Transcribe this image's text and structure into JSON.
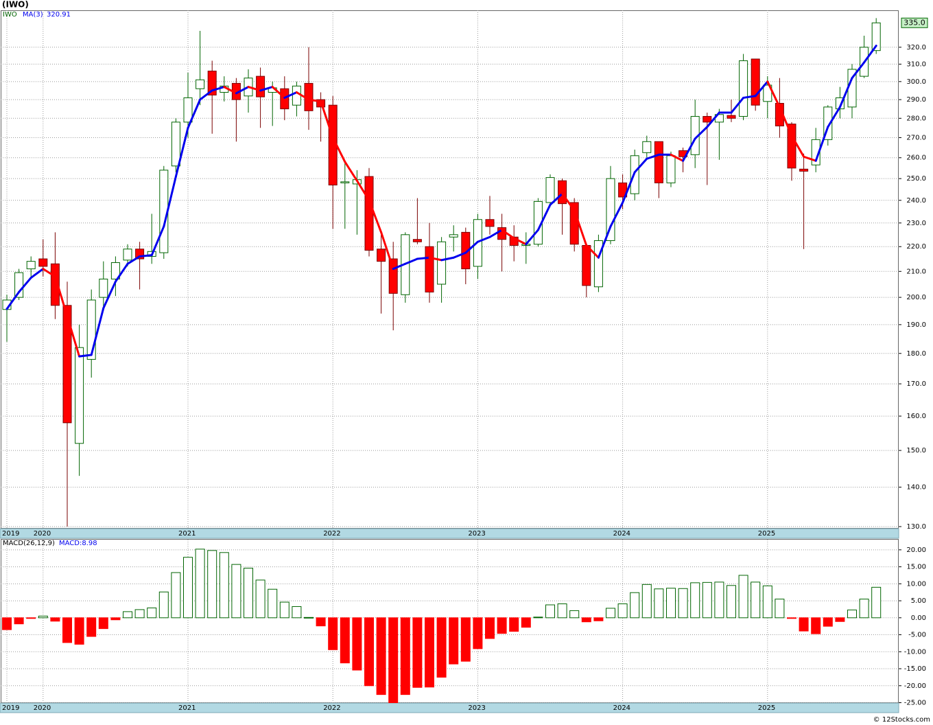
{
  "chart_data": [
    {
      "type": "candlestick",
      "title": "(IWO)",
      "log_scale": true,
      "grid": true,
      "categories": [
        "2019",
        null,
        null,
        "2020",
        null,
        null,
        null,
        null,
        null,
        null,
        null,
        null,
        null,
        null,
        null,
        "2021",
        null,
        null,
        null,
        null,
        null,
        null,
        null,
        null,
        null,
        null,
        null,
        "2022",
        null,
        null,
        null,
        null,
        null,
        null,
        null,
        null,
        null,
        null,
        null,
        "2023",
        null,
        null,
        null,
        null,
        null,
        null,
        null,
        null,
        null,
        null,
        null,
        "2024",
        null,
        null,
        null,
        null,
        null,
        null,
        null,
        null,
        null,
        null,
        null,
        "2025",
        null,
        null,
        null,
        null,
        null,
        null,
        null,
        null,
        null
      ],
      "ylim": [
        129.5,
        343
      ],
      "yticks": [
        {
          "value": 130,
          "label": "130.0"
        },
        {
          "value": 140,
          "label": "140.0"
        },
        {
          "value": 150,
          "label": "150.0"
        },
        {
          "value": 160,
          "label": "160.0"
        },
        {
          "value": 170,
          "label": "170.0"
        },
        {
          "value": 180,
          "label": "180.0"
        },
        {
          "value": 190,
          "label": "190.0"
        },
        {
          "value": 200,
          "label": "200.0"
        },
        {
          "value": 210,
          "label": "210.0"
        },
        {
          "value": 220,
          "label": "220.0"
        },
        {
          "value": 230,
          "label": "230.0"
        },
        {
          "value": 240,
          "label": "240.0"
        },
        {
          "value": 250,
          "label": "250.0"
        },
        {
          "value": 260,
          "label": "260.0"
        },
        {
          "value": 270,
          "label": "270.0"
        },
        {
          "value": 280,
          "label": "280.0"
        },
        {
          "value": 290,
          "label": "290.0"
        },
        {
          "value": 300,
          "label": "300.0"
        },
        {
          "value": 310,
          "label": "310.0"
        },
        {
          "value": 320,
          "label": "320.0"
        }
      ],
      "last_label": "335.0",
      "series": [
        {
          "name": "IWO",
          "color": "#006400",
          "down_color": "#ff0000",
          "open": [
            195.5,
            200,
            211,
            215,
            213,
            197,
            152,
            178,
            200,
            207,
            214.5,
            219,
            216,
            217.5,
            256,
            278,
            296,
            306,
            294,
            299,
            292,
            303,
            294,
            296,
            287,
            299,
            290,
            287,
            248,
            247.5,
            251,
            219,
            215,
            201,
            223,
            220,
            205,
            224,
            226,
            212,
            231.5,
            228,
            224,
            220.5,
            221,
            239,
            249,
            239,
            220.5,
            204,
            222.5,
            248,
            243,
            262.5,
            268,
            248,
            263.5,
            261.5,
            281,
            278,
            281.5,
            281,
            313,
            289,
            288,
            277,
            254.5,
            256.5,
            269,
            285,
            286,
            303,
            318
          ],
          "high": [
            201,
            211,
            216,
            223,
            226,
            206,
            190,
            203,
            214,
            216,
            221,
            222,
            234,
            256,
            280,
            305,
            330,
            312,
            303,
            302,
            307,
            308,
            300,
            303,
            300,
            320,
            294,
            292,
            258,
            254,
            255,
            226,
            222,
            226,
            241,
            230,
            224,
            229,
            228,
            234,
            242,
            234,
            229,
            226,
            241,
            252,
            250,
            241,
            221,
            225,
            256,
            252,
            264,
            271,
            268,
            263,
            265,
            290,
            283,
            285,
            290,
            316,
            313,
            303,
            302,
            278,
            262,
            275,
            287,
            297,
            310,
            327,
            338
          ],
          "low": [
            184,
            199,
            208,
            208,
            192,
            130,
            143,
            172,
            195,
            200.5,
            212,
            203,
            213,
            215,
            253,
            270,
            287,
            272,
            289,
            268,
            283,
            275,
            276,
            279,
            281,
            274,
            268,
            227.5,
            227.5,
            225,
            216,
            194,
            188,
            198,
            221,
            198,
            198,
            218,
            205,
            207,
            225,
            210,
            214,
            213,
            220,
            237,
            225,
            218,
            200,
            202,
            221,
            236,
            240,
            260,
            241,
            246,
            253,
            255,
            247,
            259,
            278,
            279,
            284,
            280,
            270,
            249,
            219,
            253,
            266,
            280,
            280,
            302,
            316
          ],
          "close": [
            199,
            209.5,
            214,
            212,
            197,
            158,
            182,
            199,
            207,
            213.5,
            219,
            215,
            218,
            254,
            278,
            291,
            301,
            292.5,
            297.5,
            290,
            302,
            291.5,
            296.5,
            285,
            297.5,
            284,
            286,
            247,
            248.5,
            249.5,
            218.5,
            214,
            201.5,
            225,
            222,
            202,
            222,
            225,
            211,
            231.5,
            228.5,
            223,
            220.5,
            221,
            239.5,
            250.5,
            238.5,
            221,
            204.5,
            222.5,
            250,
            241.5,
            261,
            268,
            248,
            261,
            260.5,
            281,
            278,
            282,
            280,
            312,
            287,
            298,
            276,
            255,
            253.5,
            269,
            286,
            291,
            307,
            320,
            335
          ]
        },
        {
          "name": "MA(3)",
          "type": "line",
          "color": "#0000ee",
          "down_color": "#ff0000",
          "values": [
            195.7,
            202,
            207.5,
            211,
            208,
            193,
            179,
            179.5,
            196,
            206,
            213,
            216,
            216.5,
            228.5,
            251,
            275,
            290,
            295,
            297,
            293.5,
            297,
            295,
            297,
            291,
            294,
            290,
            289,
            270,
            258,
            249,
            240,
            226,
            211,
            213,
            215,
            215.5,
            214.5,
            215.5,
            217.5,
            222,
            224,
            227,
            223.5,
            221,
            227,
            238,
            243,
            235.5,
            220.5,
            215.5,
            228.5,
            239,
            253,
            259.5,
            261.5,
            261.5,
            258.5,
            269.5,
            275.5,
            283,
            283,
            291,
            292,
            300,
            286,
            271,
            260.5,
            258.5,
            275.5,
            286,
            302,
            311,
            320.91
          ]
        }
      ]
    },
    {
      "type": "bar",
      "title": "MACD(26,12,9)",
      "subtitle": "MACD:8.98",
      "grid": true,
      "color": "#006400",
      "down_color": "#ff0000",
      "categories": [
        "2019",
        null,
        null,
        "2020",
        null,
        null,
        null,
        null,
        null,
        null,
        null,
        null,
        null,
        null,
        null,
        "2021",
        null,
        null,
        null,
        null,
        null,
        null,
        null,
        null,
        null,
        null,
        null,
        "2022",
        null,
        null,
        null,
        null,
        null,
        null,
        null,
        null,
        null,
        null,
        null,
        "2023",
        null,
        null,
        null,
        null,
        null,
        null,
        null,
        null,
        null,
        null,
        null,
        "2024",
        null,
        null,
        null,
        null,
        null,
        null,
        null,
        null,
        null,
        null,
        null,
        "2025",
        null,
        null,
        null,
        null,
        null,
        null,
        null,
        null,
        null
      ],
      "values": [
        -3.5,
        -1.8,
        -0.2,
        0.5,
        -1,
        -7.3,
        -7.8,
        -5.5,
        -3.2,
        -0.6,
        1.8,
        2.4,
        2.9,
        7.6,
        13.3,
        17.8,
        20.2,
        19.8,
        19.2,
        15.7,
        14.6,
        11.1,
        8.4,
        4.6,
        3.3,
        0.1,
        -2.4,
        -9.4,
        -13.3,
        -15.4,
        -20,
        -22.6,
        -25,
        -22.6,
        -20.5,
        -20.4,
        -17.5,
        -13.6,
        -12.8,
        -9.1,
        -6.1,
        -4.6,
        -4,
        -2.8,
        0.2,
        3.8,
        4.1,
        2.1,
        -1.2,
        -0.9,
        2.8,
        4.1,
        7.4,
        9.8,
        8.5,
        8.7,
        8.6,
        10.3,
        10.4,
        10.5,
        9.5,
        12.5,
        10.5,
        9.4,
        5.5,
        -0.1,
        -3.9,
        -4.7,
        -2.5,
        -1.1,
        2.3,
        5.5,
        8.98
      ],
      "ylim": [
        -25.1,
        23
      ],
      "yticks": [
        {
          "value": 20,
          "label": "20.00"
        },
        {
          "value": 15,
          "label": "15.00"
        },
        {
          "value": 10,
          "label": "10.00"
        },
        {
          "value": 5,
          "label": "5.00"
        },
        {
          "value": 0,
          "label": "0.00"
        },
        {
          "value": -5,
          "label": "-5.00"
        },
        {
          "value": -10,
          "label": "-10.00"
        },
        {
          "value": -15,
          "label": "-15.00"
        },
        {
          "value": -20,
          "label": "-20.00"
        },
        {
          "value": -25,
          "label": "-25.00"
        }
      ]
    }
  ],
  "footer": {
    "credit": "© 12Stocks.com"
  }
}
